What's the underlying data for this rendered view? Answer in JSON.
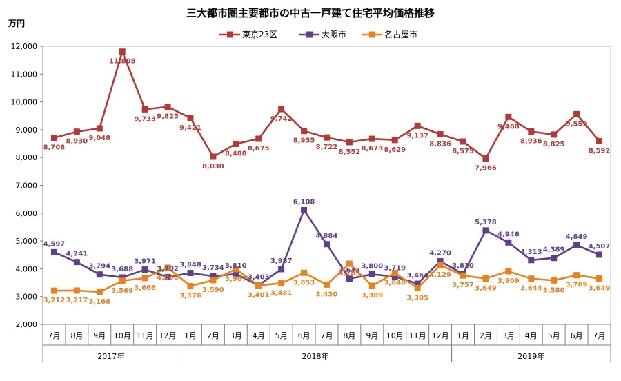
{
  "chart_data": {
    "type": "line",
    "title": "三大都市圏主要都市の中古一戸建て住宅平均価格推移",
    "ylabel": "万円",
    "ylim": [
      2000,
      12000
    ],
    "yticks": [
      "2,000",
      "3,000",
      "4,000",
      "5,000",
      "6,000",
      "7,000",
      "8,000",
      "9,000",
      "10,000",
      "11,000",
      "12,000"
    ],
    "legend_position": "top",
    "categories": [
      "7月",
      "8月",
      "9月",
      "10月",
      "11月",
      "12月",
      "1月",
      "2月",
      "3月",
      "4月",
      "5月",
      "6月",
      "7月",
      "8月",
      "9月",
      "10月",
      "11月",
      "12月",
      "1月",
      "2月",
      "3月",
      "4月",
      "5月",
      "6月",
      "7月"
    ],
    "years": [
      {
        "label": "2017年",
        "start": 0,
        "end": 5
      },
      {
        "label": "2018年",
        "start": 6,
        "end": 17
      },
      {
        "label": "2019年",
        "start": 18,
        "end": 24
      }
    ],
    "series": [
      {
        "name": "東京23区",
        "color": "#b23a36",
        "marker": "square",
        "labels_position": "below",
        "values": [
          8708,
          8930,
          9048,
          11808,
          9733,
          9825,
          9421,
          8030,
          8488,
          8675,
          9742,
          8955,
          8722,
          8552,
          8673,
          8629,
          9137,
          8836,
          8575,
          7966,
          9460,
          8936,
          8825,
          9559,
          8592
        ],
        "labels": [
          "8,708",
          "8,930",
          "9,048",
          "11,808",
          "9,733",
          "9,825",
          "9,421",
          "8,030",
          "8,488",
          "8,675",
          "9,742",
          "8,955",
          "8,722",
          "8,552",
          "8,673",
          "8,629",
          "9,137",
          "8,836",
          "8,575",
          "7,966",
          "9,460",
          "8,936",
          "8,825",
          "9,559",
          "8,592"
        ]
      },
      {
        "name": "大阪市",
        "color": "#5f3f8a",
        "marker": "square",
        "labels_position": "above",
        "values": [
          4597,
          4241,
          3794,
          3688,
          3971,
          3702,
          3848,
          3734,
          3810,
          3403,
          3987,
          6108,
          4884,
          3643,
          3800,
          3719,
          3464,
          4270,
          3810,
          5378,
          4946,
          4313,
          4389,
          4849,
          4507
        ],
        "labels": [
          "4,597",
          "4,241",
          "3,794",
          "3,688",
          "3,971",
          "3,702",
          "3,848",
          "3,734",
          "3,810",
          "3,403",
          "3,987",
          "6,108",
          "4,884",
          "3,643",
          "3,800",
          "3,719",
          "3,464",
          "4,270",
          "3,810",
          "5,378",
          "4,946",
          "4,313",
          "4,389",
          "4,849",
          "4,507"
        ]
      },
      {
        "name": "名古屋市",
        "color": "#e8821e",
        "marker": "square",
        "labels_position": "below",
        "values": [
          3212,
          3217,
          3166,
          3569,
          3666,
          4038,
          3376,
          3590,
          3987,
          3401,
          3481,
          3853,
          3430,
          4183,
          3389,
          3848,
          3305,
          4129,
          3757,
          3649,
          3909,
          3644,
          3580,
          3769,
          3649
        ],
        "labels": [
          "3,212",
          "3,217",
          "3,166",
          "3,569",
          "3,666",
          "4,038",
          "3,376",
          "3,590",
          "3,987",
          "3,401",
          "3,481",
          "3,853",
          "3,430",
          "4,183",
          "3,389",
          "3,848",
          "3,305",
          "4,129",
          "3,757",
          "3,649",
          "3,909",
          "3,644",
          "3,580",
          "3,769",
          "3,649"
        ]
      }
    ]
  }
}
